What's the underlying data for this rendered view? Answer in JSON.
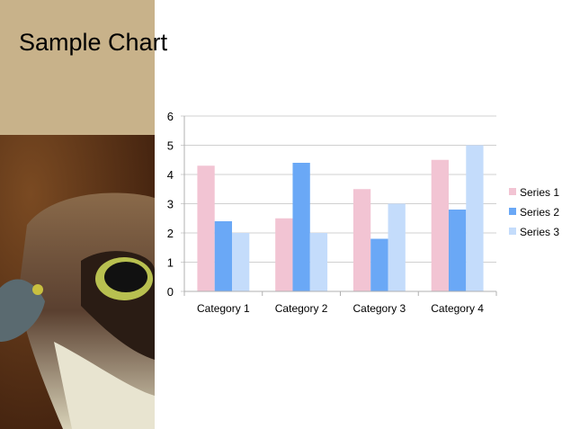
{
  "slide": {
    "title": "Sample Chart"
  },
  "chart_data": {
    "type": "bar",
    "title": "",
    "categories": [
      "Category 1",
      "Category 2",
      "Category 3",
      "Category 4"
    ],
    "series": [
      {
        "name": "Series 1",
        "values": [
          4.3,
          2.5,
          3.5,
          4.5
        ],
        "color": "#f2c4d3"
      },
      {
        "name": "Series 2",
        "values": [
          2.4,
          4.4,
          1.8,
          2.8
        ],
        "color": "#6aa8f6"
      },
      {
        "name": "Series 3",
        "values": [
          2,
          2,
          3,
          5
        ],
        "color": "#c4dcfb"
      }
    ],
    "ylim": [
      0,
      6
    ],
    "yticks": [
      "0",
      "1",
      "2",
      "3",
      "4",
      "5",
      "6"
    ],
    "grid": true,
    "legend": "right"
  }
}
